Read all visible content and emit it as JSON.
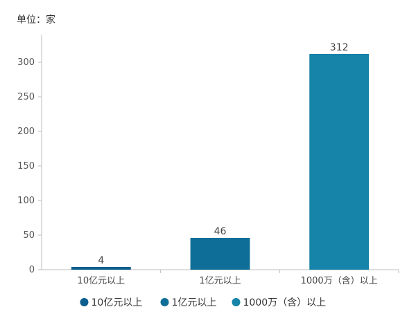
{
  "unit_label": "单位：家",
  "colors": {
    "axis": "#bdbdbd",
    "text": "#444444"
  },
  "chart_data": {
    "type": "bar",
    "title": "",
    "xlabel": "",
    "ylabel": "",
    "categories": [
      "10亿元以上",
      "1亿元以上",
      "1000万（含）以上"
    ],
    "values": [
      4,
      46,
      312
    ],
    "colors": [
      "#0b5e8e",
      "#0e6e98",
      "#1684a8"
    ],
    "ylim": [
      0,
      340
    ],
    "yticks": [
      0,
      50,
      100,
      150,
      200,
      250,
      300
    ],
    "grid": false,
    "legend": {
      "position": "bottom",
      "entries": [
        "10亿元以上",
        "1亿元以上",
        "1000万（含）以上"
      ]
    }
  }
}
